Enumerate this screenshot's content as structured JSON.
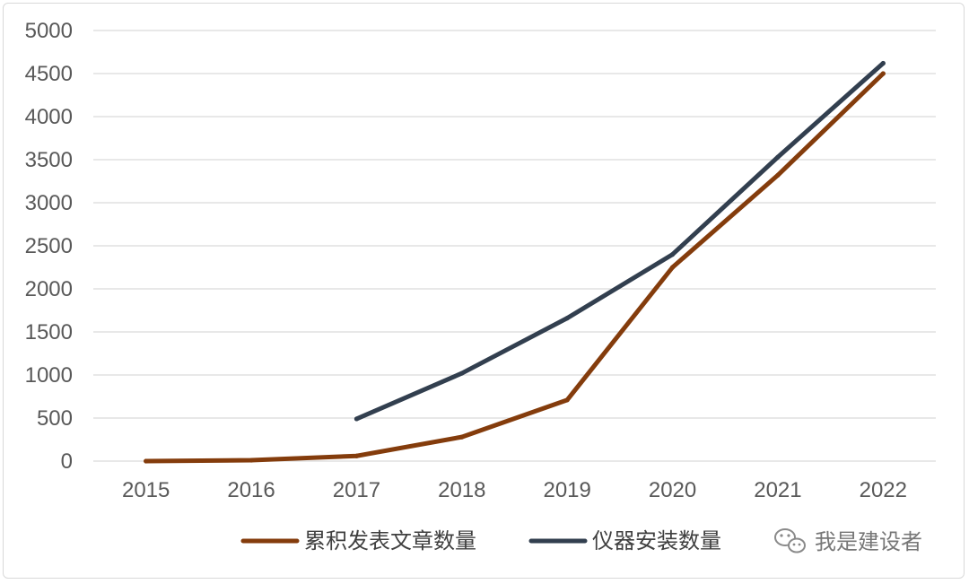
{
  "chart_data": {
    "type": "line",
    "categories": [
      "2015",
      "2016",
      "2017",
      "2018",
      "2019",
      "2020",
      "2021",
      "2022"
    ],
    "ylim": [
      0,
      5000
    ],
    "yticks": [
      0,
      500,
      1000,
      1500,
      2000,
      2500,
      3000,
      3500,
      4000,
      4500,
      5000
    ],
    "grid": true,
    "legend_position": "bottom",
    "series": [
      {
        "name": "累积发表文章数量",
        "color": "#843C0C",
        "values": [
          0,
          10,
          60,
          280,
          710,
          2250,
          3320,
          4500
        ]
      },
      {
        "name": "仪器安装数量",
        "color": "#323F4F",
        "values": [
          null,
          null,
          490,
          1020,
          1660,
          2400,
          3530,
          4620
        ]
      }
    ]
  },
  "watermark": {
    "text": "我是建设者",
    "icon": "wechat-icon"
  }
}
